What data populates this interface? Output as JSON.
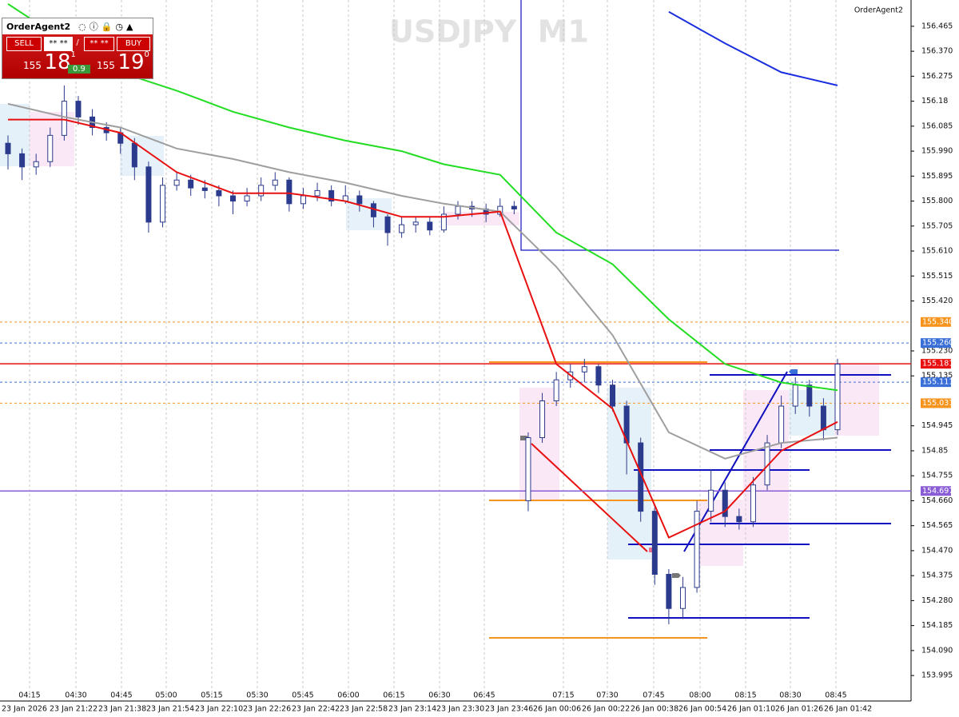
{
  "panel": {
    "title": "OrderAgent2",
    "sell": "SELL",
    "buy": "BUY",
    "volume": "** **",
    "separator": "/",
    "volume2": "** **",
    "sell_price": {
      "big": "155",
      "main": "18",
      "sup": "1"
    },
    "spread": "0.9",
    "buy_price": {
      "big": "155",
      "main": "19",
      "sup": "0"
    }
  },
  "chart_data": {
    "type": "candlestick",
    "title": "USDJPY  M1",
    "indicator_label": "OrderAgent2",
    "candle_color": "#2b3a8c",
    "open": [
      156.02,
      155.98,
      155.93,
      155.95,
      156.05,
      156.18,
      156.12,
      156.08,
      156.06,
      156.02,
      155.93,
      155.72,
      155.86,
      155.88,
      155.85,
      155.84,
      155.82,
      155.8,
      155.82,
      155.86,
      155.88,
      155.79,
      155.82,
      155.84,
      155.8,
      155.82,
      155.79,
      155.74,
      155.68,
      155.71,
      155.72,
      155.69,
      155.75,
      155.78,
      155.77,
      155.75,
      155.78,
      154.66,
      154.9,
      155.04,
      155.12,
      155.15,
      155.17,
      155.1,
      155.02,
      154.88,
      154.62,
      154.38,
      154.25,
      154.33,
      154.62,
      154.7,
      154.6,
      154.58,
      154.72,
      154.88,
      155.02,
      155.1,
      155.02,
      154.93
    ],
    "high": [
      156.05,
      156.0,
      155.98,
      156.08,
      156.24,
      156.2,
      156.15,
      156.1,
      156.08,
      156.04,
      155.95,
      155.89,
      155.91,
      155.9,
      155.88,
      155.86,
      155.84,
      155.85,
      155.89,
      155.91,
      155.89,
      155.85,
      155.87,
      155.86,
      155.86,
      155.84,
      155.8,
      155.75,
      155.74,
      155.74,
      155.74,
      155.78,
      155.8,
      155.8,
      155.79,
      155.81,
      155.8,
      154.92,
      155.07,
      155.15,
      155.18,
      155.2,
      155.18,
      155.12,
      155.04,
      154.9,
      154.64,
      154.4,
      154.37,
      154.66,
      154.78,
      154.73,
      154.63,
      154.75,
      154.91,
      155.06,
      155.13,
      155.12,
      155.05,
      155.2
    ],
    "low": [
      155.92,
      155.88,
      155.9,
      155.93,
      156.03,
      156.09,
      156.05,
      156.03,
      155.98,
      155.88,
      155.68,
      155.7,
      155.84,
      155.82,
      155.81,
      155.78,
      155.75,
      155.78,
      155.8,
      155.84,
      155.76,
      155.77,
      155.8,
      155.78,
      155.79,
      155.76,
      155.7,
      155.63,
      155.66,
      155.68,
      155.67,
      155.68,
      155.73,
      155.74,
      155.72,
      155.74,
      155.75,
      154.62,
      154.88,
      155.02,
      155.09,
      155.11,
      155.07,
      155.0,
      154.76,
      154.58,
      154.34,
      154.19,
      154.21,
      154.31,
      154.58,
      154.56,
      154.55,
      154.56,
      154.7,
      154.86,
      154.99,
      154.98,
      154.89,
      154.91
    ],
    "close": [
      155.98,
      155.93,
      155.95,
      156.05,
      156.18,
      156.12,
      156.08,
      156.06,
      156.02,
      155.93,
      155.72,
      155.86,
      155.88,
      155.85,
      155.84,
      155.82,
      155.8,
      155.82,
      155.86,
      155.88,
      155.79,
      155.82,
      155.84,
      155.8,
      155.82,
      155.79,
      155.74,
      155.68,
      155.71,
      155.72,
      155.69,
      155.75,
      155.78,
      155.77,
      155.75,
      155.78,
      155.77,
      154.9,
      155.04,
      155.12,
      155.15,
      155.17,
      155.1,
      155.02,
      154.88,
      154.62,
      154.38,
      154.25,
      154.33,
      154.62,
      154.7,
      154.6,
      154.58,
      154.72,
      154.88,
      155.02,
      155.1,
      155.02,
      154.93,
      155.18
    ],
    "series": [
      {
        "color": "#9e9e9e",
        "values": [
          156.17,
          156.12,
          156.08,
          156.0,
          155.96,
          155.91,
          155.87,
          155.82,
          155.79,
          155.76,
          155.55,
          155.29,
          154.92,
          154.82,
          154.88,
          154.9
        ]
      },
      {
        "color": "#22dd22",
        "values": [
          156.55,
          156.41,
          156.29,
          156.22,
          156.14,
          156.08,
          156.03,
          155.99,
          155.94,
          155.9,
          155.68,
          155.56,
          155.35,
          155.18,
          155.11,
          155.08
        ]
      },
      {
        "color": "#e81010",
        "values": [
          156.11,
          156.11,
          156.06,
          155.91,
          155.83,
          155.83,
          155.8,
          155.74,
          155.74,
          155.76,
          155.18,
          155.01,
          154.52,
          154.62,
          154.85,
          154.96
        ]
      },
      {
        "color": "#1a2ee0",
        "values": [
          null,
          null,
          null,
          null,
          null,
          null,
          null,
          null,
          null,
          null,
          null,
          null,
          156.52,
          156.4,
          156.29,
          156.24
        ]
      }
    ],
    "ylim": [
      153.898,
      156.565
    ],
    "yticks": [
      156.465,
      {
        "value": 156.37,
        "label": "156.370"
      },
      156.275,
      156.18,
      156.085,
      {
        "value": 155.99,
        "label": "155.990"
      },
      155.895,
      {
        "value": 155.8,
        "label": "155.800"
      },
      155.705,
      {
        "value": 155.61,
        "label": "155.610"
      },
      155.515,
      {
        "value": 155.42,
        "label": "155.420"
      },
      {
        "value": 155.23,
        "label": "155.230"
      },
      155.135,
      154.945,
      154.85,
      154.755,
      {
        "value": 154.66,
        "label": "154.660"
      },
      154.565,
      {
        "value": 154.47,
        "label": "154.470"
      },
      154.375,
      {
        "value": 154.28,
        "label": "154.280"
      },
      154.185,
      {
        "value": 154.09,
        "label": "154.090"
      },
      153.995
    ],
    "levels": [
      {
        "value": 155.34,
        "label": "155.340",
        "color": "#f7941d",
        "style": "dotted"
      },
      {
        "value": 155.26,
        "label": "155.260",
        "color": "#3a6fd8",
        "style": "dotted"
      },
      {
        "value": 155.181,
        "color": "#e81010",
        "style": "solid"
      },
      {
        "value": 155.111,
        "color": "#3a6fd8",
        "style": "dotted"
      },
      {
        "value": 155.031,
        "color": "#f7941d",
        "style": "dotted"
      },
      {
        "value": 154.697,
        "color": "#8a5cd6",
        "style": "solid"
      }
    ],
    "time_labels": [
      "04:15",
      "04:30",
      "04:45",
      "05:00",
      "05:15",
      "05:30",
      "05:45",
      "06:00",
      "06:15",
      "06:30",
      "06:45",
      "07:15",
      "07:30",
      "07:45",
      "08:00",
      "08:15",
      "08:30",
      "08:45"
    ],
    "date_labels": [
      "23 Jan 2026",
      "23 Jan 21:22",
      "23 Jan 21:38",
      "23 Jan 21:54",
      "23 Jan 22:10",
      "23 Jan 22:26",
      "23 Jan 22:42",
      "23 Jan 22:58",
      "23 Jan 23:14",
      "23 Jan 23:30",
      "23 Jan 23:46",
      "26 Jan 00:06",
      "26 Jan 00:22",
      "26 Jan 00:38",
      "26 Jan 00:54",
      "26 Jan 01:10",
      "26 Jan 01:26",
      "26 Jan 01:42"
    ],
    "grid": true
  }
}
